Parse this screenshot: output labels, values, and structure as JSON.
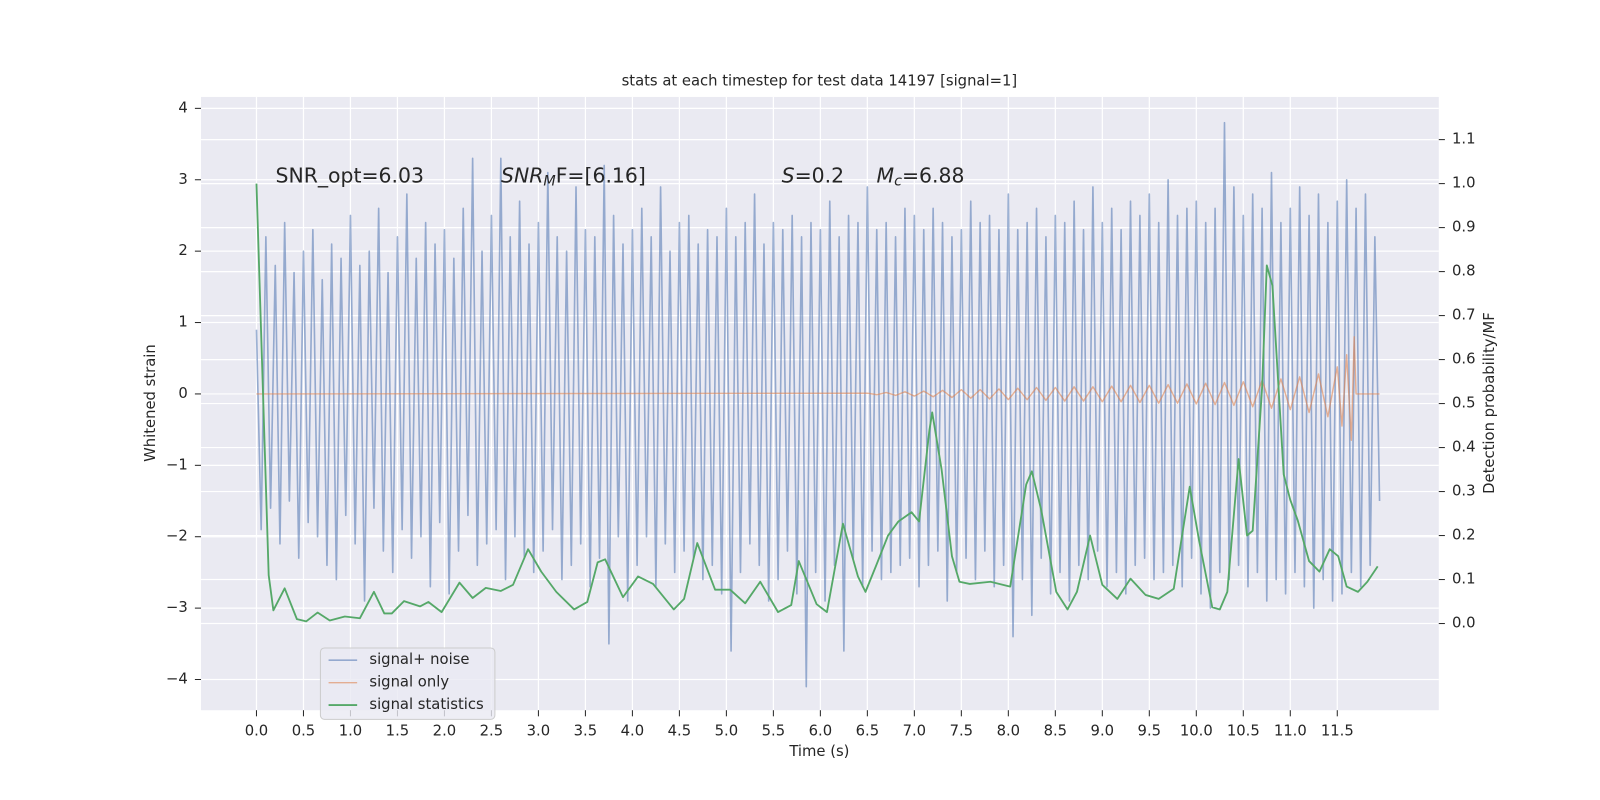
{
  "chart_data": {
    "type": "line",
    "title": "stats at each timestep for test data 14197 [signal=1]",
    "xlabel": "Time (s)",
    "ylabel": "Whitened strain",
    "y2label": "Detection probability/MF",
    "xlim": [
      -0.59,
      12.58
    ],
    "ylim": [
      -4.43,
      4.16
    ],
    "y2lim": [
      -0.197,
      1.197
    ],
    "xticks": [
      {
        "value": 0,
        "label": "0.0"
      },
      0.5,
      {
        "value": 1,
        "label": "1.0"
      },
      1.5,
      {
        "value": 2,
        "label": "2.0"
      },
      2.5,
      {
        "value": 3,
        "label": "3.0"
      },
      3.5,
      {
        "value": 4,
        "label": "4.0"
      },
      4.5,
      {
        "value": 5,
        "label": "5.0"
      },
      5.5,
      {
        "value": 6,
        "label": "6.0"
      },
      6.5,
      {
        "value": 7,
        "label": "7.0"
      },
      7.5,
      {
        "value": 8,
        "label": "8.0"
      },
      8.5,
      {
        "value": 9,
        "label": "9.0"
      },
      9.5,
      {
        "value": 10,
        "label": "10.0"
      },
      10.5,
      {
        "value": 11,
        "label": "11.0"
      },
      11.5
    ],
    "yticks": [
      {
        "value": -4,
        "label": "−4"
      },
      {
        "value": -3,
        "label": "−3"
      },
      {
        "value": -2,
        "label": "−2"
      },
      {
        "value": -1,
        "label": "−1"
      },
      0,
      1,
      2,
      3,
      4
    ],
    "y2ticks": [
      {
        "value": 0,
        "label": "0.0"
      },
      0.1,
      0.2,
      0.3,
      0.4,
      0.5,
      0.6,
      0.7,
      0.8,
      0.9,
      {
        "value": 1,
        "label": "1.0"
      },
      1.1
    ],
    "grid": true,
    "legend": "lower left",
    "annotations": [
      [
        "SNR_opt=6.03"
      ],
      [
        "SNR",
        "M",
        "F=[6.16]"
      ],
      [
        "S",
        "=0.2"
      ],
      [
        "M",
        "c",
        "=6.88"
      ]
    ],
    "series": [
      {
        "name": "signal+ noise",
        "color": "#4c72b0",
        "axis": "y",
        "x": [
          0,
          0.05,
          0.1,
          0.15,
          0.2,
          0.25,
          0.3,
          0.35,
          0.4,
          0.45,
          0.5,
          0.55,
          0.6,
          0.65,
          0.7,
          0.75,
          0.8,
          0.85,
          0.9,
          0.95,
          1,
          1.05,
          1.1,
          1.15,
          1.2,
          1.25,
          1.3,
          1.35,
          1.4,
          1.45,
          1.5,
          1.55,
          1.6,
          1.65,
          1.7,
          1.75,
          1.8,
          1.85,
          1.9,
          1.95,
          2,
          2.05,
          2.1,
          2.15,
          2.2,
          2.25,
          2.3,
          2.35,
          2.4,
          2.45,
          2.5,
          2.55,
          2.6,
          2.65,
          2.7,
          2.75,
          2.8,
          2.85,
          2.9,
          2.95,
          3,
          3.05,
          3.1,
          3.15,
          3.2,
          3.25,
          3.3,
          3.35,
          3.4,
          3.45,
          3.5,
          3.55,
          3.6,
          3.65,
          3.7,
          3.75,
          3.8,
          3.85,
          3.9,
          3.95,
          4,
          4.05,
          4.1,
          4.15,
          4.2,
          4.25,
          4.3,
          4.35,
          4.4,
          4.45,
          4.5,
          4.55,
          4.6,
          4.65,
          4.7,
          4.75,
          4.8,
          4.85,
          4.9,
          4.95,
          5,
          5.05,
          5.1,
          5.15,
          5.2,
          5.25,
          5.3,
          5.35,
          5.4,
          5.45,
          5.5,
          5.55,
          5.6,
          5.65,
          5.7,
          5.75,
          5.8,
          5.85,
          5.9,
          5.95,
          6,
          6.05,
          6.1,
          6.15,
          6.2,
          6.25,
          6.3,
          6.35,
          6.4,
          6.45,
          6.5,
          6.55,
          6.6,
          6.65,
          6.7,
          6.75,
          6.8,
          6.85,
          6.9,
          6.95,
          7,
          7.05,
          7.1,
          7.15,
          7.2,
          7.25,
          7.3,
          7.35,
          7.4,
          7.45,
          7.5,
          7.55,
          7.6,
          7.65,
          7.7,
          7.75,
          7.8,
          7.85,
          7.9,
          7.95,
          8,
          8.05,
          8.1,
          8.15,
          8.2,
          8.25,
          8.3,
          8.35,
          8.4,
          8.45,
          8.5,
          8.55,
          8.6,
          8.65,
          8.7,
          8.75,
          8.8,
          8.85,
          8.9,
          8.95,
          9,
          9.05,
          9.1,
          9.15,
          9.2,
          9.25,
          9.3,
          9.35,
          9.4,
          9.45,
          9.5,
          9.55,
          9.6,
          9.65,
          9.7,
          9.75,
          9.8,
          9.85,
          9.9,
          9.95,
          10,
          10.05,
          10.1,
          10.15,
          10.2,
          10.25,
          10.3,
          10.35,
          10.4,
          10.45,
          10.5,
          10.55,
          10.6,
          10.65,
          10.7,
          10.75,
          10.8,
          10.85,
          10.9,
          10.95,
          11,
          11.05,
          11.1,
          11.15,
          11.2,
          11.25,
          11.3,
          11.35,
          11.4,
          11.45,
          11.5,
          11.55,
          11.6,
          11.65,
          11.7,
          11.75,
          11.8,
          11.85,
          11.9,
          11.95
        ],
        "values": [
          0.9,
          -1.9,
          2.2,
          -1.6,
          1.8,
          -2.1,
          2.4,
          -1.5,
          1.7,
          -2.3,
          2.0,
          -1.8,
          2.3,
          -2.0,
          1.6,
          -2.4,
          2.1,
          -2.6,
          1.9,
          -1.7,
          2.5,
          -2.1,
          1.8,
          -2.9,
          2.0,
          -1.6,
          2.6,
          -2.2,
          1.7,
          -2.5,
          2.2,
          -1.9,
          2.8,
          -2.3,
          1.9,
          -2.0,
          2.4,
          -2.7,
          2.1,
          -1.8,
          2.3,
          -2.8,
          1.9,
          -2.2,
          2.6,
          -1.7,
          3.3,
          -2.4,
          2.0,
          -2.1,
          2.5,
          -1.9,
          3.3,
          -2.6,
          2.2,
          -2.0,
          2.7,
          -2.3,
          2.1,
          -2.5,
          2.4,
          -2.2,
          3.1,
          -1.9,
          2.2,
          -2.6,
          2.0,
          -2.4,
          2.9,
          -2.1,
          2.3,
          -2.7,
          2.2,
          -2.3,
          3.2,
          -3.5,
          2.5,
          -2.0,
          2.1,
          -2.9,
          2.3,
          -2.4,
          2.6,
          -2.0,
          2.2,
          -2.7,
          2.9,
          -2.1,
          2.0,
          -2.5,
          2.4,
          -2.2,
          2.5,
          -2.3,
          2.1,
          -2.6,
          2.3,
          -2.4,
          2.2,
          -2.8,
          2.6,
          -3.6,
          2.2,
          -2.5,
          2.4,
          -2.1,
          2.8,
          -2.4,
          2.1,
          -2.9,
          2.4,
          -2.6,
          2.3,
          -2.2,
          2.5,
          -2.8,
          2.2,
          -4.1,
          2.4,
          -2.5,
          2.3,
          -2.9,
          2.7,
          -2.4,
          2.2,
          -3.6,
          2.5,
          -2.3,
          2.4,
          -2.7,
          2.9,
          -2.2,
          2.3,
          -2.6,
          2.4,
          -2.5,
          2.2,
          -2.4,
          2.6,
          -2.3,
          2.5,
          -2.7,
          2.3,
          -2.4,
          2.6,
          -2.2,
          2.4,
          -2.9,
          2.2,
          -2.5,
          2.3,
          -2.3,
          2.7,
          -2.6,
          2.4,
          -2.2,
          2.5,
          -2.7,
          2.3,
          -2.4,
          2.8,
          -3.4,
          2.3,
          -2.6,
          2.4,
          -3.1,
          2.6,
          -2.3,
          2.2,
          -2.8,
          2.5,
          -2.5,
          2.4,
          -2.9,
          2.7,
          -2.4,
          2.3,
          -2.6,
          2.9,
          -2.2,
          2.4,
          -2.7,
          2.6,
          -2.5,
          2.3,
          -2.8,
          2.7,
          -2.4,
          2.5,
          -2.3,
          2.8,
          -2.6,
          2.4,
          -2.5,
          3.0,
          -2.4,
          2.5,
          -2.7,
          2.6,
          -2.3,
          2.7,
          -2.8,
          2.4,
          -3.0,
          2.6,
          -2.5,
          3.8,
          -2.6,
          2.9,
          -2.4,
          2.5,
          -2.7,
          2.8,
          -2.5,
          2.6,
          -2.9,
          3.1,
          -2.6,
          2.4,
          -2.8,
          2.6,
          -2.5,
          2.9,
          -2.7,
          2.5,
          -3.0,
          2.8,
          -2.6,
          2.4,
          -2.9,
          2.7,
          -2.8,
          3.0,
          -2.5,
          2.6,
          -2.7,
          2.8,
          -2.4,
          2.2,
          -1.5
        ]
      },
      {
        "name": "signal only",
        "color": "#dd8452",
        "axis": "y",
        "x": [
          0,
          6.5,
          6.6,
          6.7,
          6.8,
          6.9,
          7,
          7.1,
          7.2,
          7.3,
          7.4,
          7.5,
          7.6,
          7.7,
          7.8,
          7.9,
          8,
          8.1,
          8.2,
          8.3,
          8.4,
          8.5,
          8.6,
          8.7,
          8.8,
          8.9,
          9,
          9.1,
          9.2,
          9.3,
          9.4,
          9.5,
          9.6,
          9.7,
          9.8,
          9.9,
          10,
          10.1,
          10.2,
          10.3,
          10.4,
          10.5,
          10.6,
          10.7,
          10.8,
          10.9,
          11,
          11.1,
          11.2,
          11.3,
          11.4,
          11.5,
          11.55,
          11.6,
          11.65,
          11.68,
          11.7,
          11.95
        ],
        "values": [
          0,
          0.01,
          -0.01,
          0.02,
          -0.02,
          0.03,
          -0.03,
          0.04,
          -0.04,
          0.05,
          -0.05,
          0.06,
          -0.06,
          0.06,
          -0.07,
          0.07,
          -0.08,
          0.08,
          -0.08,
          0.09,
          -0.09,
          0.09,
          -0.1,
          0.1,
          -0.1,
          0.1,
          -0.11,
          0.11,
          -0.11,
          0.12,
          -0.12,
          0.12,
          -0.13,
          0.13,
          -0.13,
          0.14,
          -0.14,
          0.15,
          -0.15,
          0.16,
          -0.16,
          0.17,
          -0.18,
          0.19,
          -0.2,
          0.21,
          -0.22,
          0.24,
          -0.26,
          0.28,
          -0.32,
          0.38,
          -0.45,
          0.55,
          -0.65,
          0.8,
          0,
          0
        ]
      },
      {
        "name": "signal statistics",
        "color": "#55a868",
        "axis": "y2",
        "x": [
          0,
          0.13,
          0.18,
          0.3,
          0.43,
          0.53,
          0.65,
          0.78,
          0.94,
          1.1,
          1.25,
          1.36,
          1.44,
          1.57,
          1.74,
          1.83,
          1.97,
          2.16,
          2.3,
          2.44,
          2.6,
          2.73,
          2.89,
          3.03,
          3.19,
          3.38,
          3.52,
          3.63,
          3.71,
          3.9,
          4.06,
          4.22,
          4.44,
          4.55,
          4.69,
          4.88,
          5.04,
          5.2,
          5.36,
          5.55,
          5.69,
          5.77,
          5.96,
          6.07,
          6.24,
          6.4,
          6.48,
          6.59,
          6.72,
          6.83,
          6.97,
          7.05,
          7.16,
          7.19,
          7.29,
          7.4,
          7.48,
          7.59,
          7.81,
          8.02,
          8.19,
          8.25,
          8.35,
          8.51,
          8.63,
          8.73,
          8.87,
          9,
          9.16,
          9.3,
          9.46,
          9.6,
          9.76,
          9.93,
          10.03,
          10.17,
          10.25,
          10.33,
          10.45,
          10.54,
          10.6,
          10.7,
          10.75,
          10.81,
          10.93,
          11,
          11.08,
          11.2,
          11.31,
          11.42,
          11.51,
          11.6,
          11.72,
          11.82,
          11.93
        ],
        "values": [
          1.0,
          0.11,
          0.03,
          0.08,
          0.01,
          0.005,
          0.025,
          0.007,
          0.016,
          0.012,
          0.072,
          0.023,
          0.023,
          0.051,
          0.039,
          0.049,
          0.026,
          0.093,
          0.058,
          0.081,
          0.074,
          0.088,
          0.169,
          0.118,
          0.072,
          0.032,
          0.049,
          0.139,
          0.146,
          0.06,
          0.107,
          0.09,
          0.032,
          0.056,
          0.183,
          0.077,
          0.077,
          0.046,
          0.095,
          0.026,
          0.042,
          0.142,
          0.044,
          0.026,
          0.227,
          0.107,
          0.072,
          0.13,
          0.2,
          0.232,
          0.253,
          0.232,
          0.439,
          0.48,
          0.35,
          0.153,
          0.095,
          0.09,
          0.095,
          0.084,
          0.316,
          0.346,
          0.258,
          0.072,
          0.032,
          0.072,
          0.2,
          0.088,
          0.056,
          0.102,
          0.065,
          0.056,
          0.079,
          0.311,
          0.188,
          0.037,
          0.032,
          0.072,
          0.374,
          0.2,
          0.211,
          0.536,
          0.814,
          0.768,
          0.339,
          0.281,
          0.234,
          0.142,
          0.118,
          0.169,
          0.153,
          0.084,
          0.072,
          0.095,
          0.13
        ]
      }
    ]
  }
}
